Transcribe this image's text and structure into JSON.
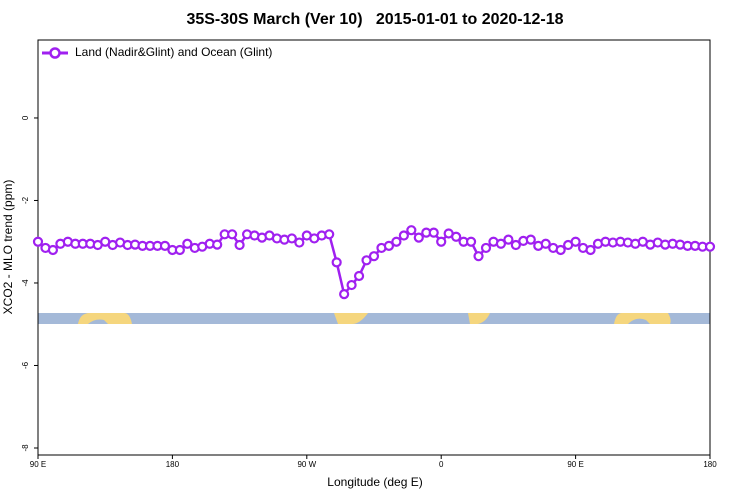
{
  "chart_data": {
    "type": "line",
    "title": "35S-30S March (Ver 10)   2015-01-01 to 2020-12-18",
    "xlabel": "Longitude (deg E)",
    "ylabel": "XCO2 - MLO trend (ppm)",
    "x": [
      90,
      95,
      100,
      105,
      110,
      115,
      120,
      125,
      130,
      135,
      140,
      145,
      150,
      155,
      160,
      165,
      170,
      175,
      180,
      185,
      190,
      195,
      200,
      205,
      210,
      215,
      220,
      225,
      230,
      235,
      240,
      245,
      250,
      255,
      260,
      265,
      270,
      275,
      280,
      285,
      290,
      295,
      300,
      305,
      310,
      315,
      320,
      325,
      330,
      335,
      340,
      345,
      350,
      355,
      360,
      365,
      370,
      375,
      380,
      385,
      390,
      395,
      400,
      405,
      410,
      415,
      420,
      425,
      430,
      435,
      440,
      445,
      450,
      455,
      460,
      465,
      470,
      475,
      480,
      485,
      490,
      495,
      500,
      505,
      510,
      515,
      520,
      525,
      530,
      535,
      540
    ],
    "series": [
      {
        "name": "Land (Nadir&Glint) and Ocean (Glint)",
        "color": "#a020f0",
        "values": [
          -3.0,
          -3.15,
          -3.2,
          -3.05,
          -3.0,
          -3.05,
          -3.05,
          -3.05,
          -3.08,
          -3.0,
          -3.08,
          -3.02,
          -3.08,
          -3.07,
          -3.1,
          -3.1,
          -3.1,
          -3.1,
          -3.2,
          -3.2,
          -3.05,
          -3.15,
          -3.12,
          -3.05,
          -3.07,
          -2.82,
          -2.82,
          -3.08,
          -2.82,
          -2.85,
          -2.9,
          -2.85,
          -2.92,
          -2.95,
          -2.92,
          -3.02,
          -2.85,
          -2.92,
          -2.85,
          -2.82,
          -3.5,
          -4.27,
          -4.05,
          -3.83,
          -3.45,
          -3.35,
          -3.15,
          -3.1,
          -3.0,
          -2.85,
          -2.72,
          -2.9,
          -2.78,
          -2.78,
          -3.0,
          -2.8,
          -2.88,
          -3.0,
          -3.0,
          -3.35,
          -3.15,
          -3.0,
          -3.05,
          -2.95,
          -3.08,
          -2.98,
          -2.95,
          -3.1,
          -3.05,
          -3.15,
          -3.2,
          -3.08,
          -3.0,
          -3.15,
          -3.2,
          -3.05,
          -3.0,
          -3.02,
          -3.0,
          -3.02,
          -3.05,
          -3.0,
          -3.07,
          -3.02,
          -3.07,
          -3.05,
          -3.07,
          -3.1,
          -3.1,
          -3.12,
          -3.12
        ]
      }
    ],
    "xlim": [
      90,
      540
    ],
    "xticks": [
      {
        "value": 90,
        "label": "90 E"
      },
      180,
      {
        "value": 270,
        "label": "90 W"
      },
      {
        "value": 360,
        "label": "0"
      },
      {
        "value": 450,
        "label": "90 E"
      },
      {
        "value": 540,
        "label": "180"
      }
    ],
    "ylim": [
      -8.17,
      1.89
    ],
    "yticks": [
      -8,
      -6,
      -4,
      -2,
      0
    ],
    "legend": "top-left"
  }
}
